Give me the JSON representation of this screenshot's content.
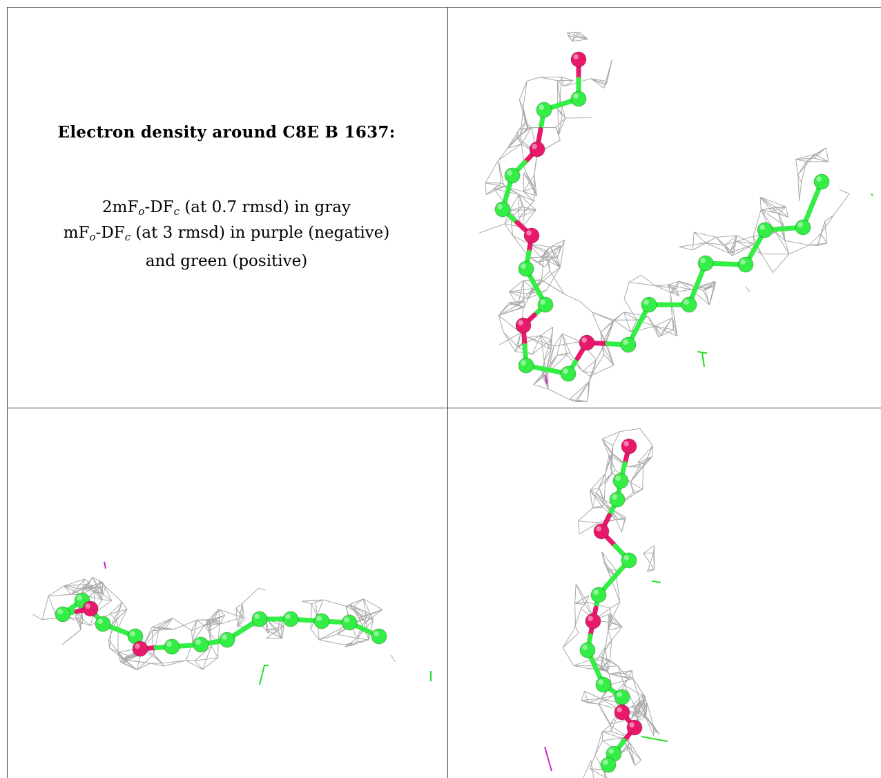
{
  "caption": {
    "title": "Electron density around C8E B 1637:",
    "line1": {
      "pre": "2mF",
      "sub1": "o",
      "mid": "-DF",
      "sub2": "c",
      "post": " (at 0.7 rmsd) in gray"
    },
    "line2": {
      "pre": "mF",
      "sub1": "o",
      "mid": "-DF",
      "sub2": "c",
      "post": " (at 3 rmsd) in purple (negative)"
    },
    "line3": "and green (positive)"
  },
  "colors": {
    "carbon": "#33ee44",
    "oxygen": "#e8186a",
    "mesh": "#9a9a9a",
    "positive": "#22dd22",
    "negative": "#cc22cc"
  },
  "views": [
    {
      "name": "top-right-view"
    },
    {
      "name": "bottom-left-view"
    },
    {
      "name": "bottom-right-view"
    }
  ]
}
